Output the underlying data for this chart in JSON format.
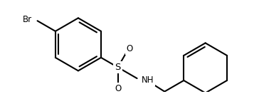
{
  "bg_color": "#ffffff",
  "line_color": "#000000",
  "line_width": 1.5,
  "font_size": 8.5,
  "figsize": [
    3.64,
    1.32
  ],
  "dpi": 100,
  "br_label": "Br",
  "o_label_top": "O",
  "o_label_bot": "O",
  "s_label": "S",
  "nh_label": "NH"
}
